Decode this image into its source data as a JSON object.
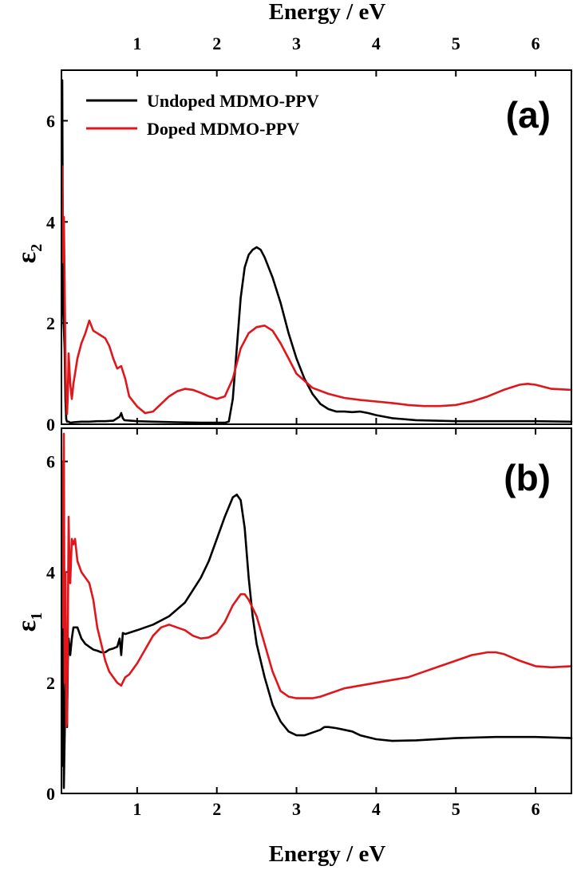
{
  "chart_data": {
    "type": "line",
    "x_label_top": "Energy / eV",
    "x_label_bottom": "Energy / eV",
    "xlim": [
      0.05,
      6.45
    ],
    "x_ticks": [
      1,
      2,
      3,
      4,
      5,
      6
    ],
    "colors": {
      "undoped": "#000000",
      "doped": "#e0161b"
    },
    "legend": {
      "placement": "top-left",
      "entries": [
        "Undoped MDMO-PPV",
        "Doped MDMO-PPV"
      ]
    },
    "panels": [
      {
        "label": "(a)",
        "ylabel_main": "ε",
        "ylabel_sub": "2",
        "ylim": [
          0,
          7
        ],
        "y_ticks": [
          0,
          2,
          4,
          6
        ],
        "series": [
          {
            "name": "Undoped MDMO-PPV",
            "x": [
              0.06,
              0.07,
              0.08,
              0.09,
              0.1,
              0.11,
              0.12,
              0.14,
              0.16,
              0.2,
              0.3,
              0.4,
              0.5,
              0.6,
              0.7,
              0.78,
              0.8,
              0.82,
              0.84,
              1.0,
              1.2,
              1.5,
              1.8,
              2.0,
              2.1,
              2.15,
              2.2,
              2.25,
              2.3,
              2.35,
              2.4,
              2.45,
              2.5,
              2.55,
              2.6,
              2.7,
              2.8,
              2.9,
              3.0,
              3.1,
              3.2,
              3.3,
              3.4,
              3.5,
              3.6,
              3.7,
              3.8,
              3.9,
              4.0,
              4.2,
              4.5,
              5.0,
              5.5,
              6.0,
              6.45
            ],
            "y": [
              6.8,
              2.3,
              1.9,
              1.5,
              0.5,
              0.1,
              0.05,
              0.05,
              0.03,
              0.04,
              0.05,
              0.05,
              0.06,
              0.06,
              0.07,
              0.15,
              0.22,
              0.12,
              0.08,
              0.06,
              0.05,
              0.04,
              0.03,
              0.03,
              0.03,
              0.05,
              0.5,
              1.5,
              2.5,
              3.1,
              3.35,
              3.45,
              3.5,
              3.45,
              3.3,
              2.9,
              2.4,
              1.8,
              1.3,
              0.9,
              0.6,
              0.4,
              0.3,
              0.25,
              0.25,
              0.24,
              0.25,
              0.22,
              0.18,
              0.12,
              0.08,
              0.06,
              0.06,
              0.06,
              0.05
            ]
          },
          {
            "name": "Doped MDMO-PPV",
            "x": [
              0.06,
              0.07,
              0.08,
              0.09,
              0.1,
              0.11,
              0.12,
              0.13,
              0.14,
              0.16,
              0.18,
              0.2,
              0.25,
              0.3,
              0.35,
              0.4,
              0.45,
              0.5,
              0.55,
              0.6,
              0.65,
              0.7,
              0.75,
              0.8,
              0.85,
              0.9,
              1.0,
              1.1,
              1.2,
              1.3,
              1.4,
              1.5,
              1.6,
              1.7,
              1.8,
              1.9,
              2.0,
              2.1,
              2.2,
              2.3,
              2.4,
              2.5,
              2.6,
              2.7,
              2.8,
              2.9,
              3.0,
              3.2,
              3.4,
              3.6,
              3.8,
              4.0,
              4.2,
              4.4,
              4.6,
              4.8,
              5.0,
              5.2,
              5.4,
              5.6,
              5.8,
              5.9,
              6.0,
              6.2,
              6.45
            ],
            "y": [
              5.1,
              3.2,
              4.1,
              2.8,
              1.2,
              0.5,
              0.2,
              0.6,
              1.4,
              0.8,
              0.5,
              0.8,
              1.3,
              1.6,
              1.8,
              2.05,
              1.85,
              1.8,
              1.75,
              1.7,
              1.55,
              1.3,
              1.1,
              1.15,
              0.9,
              0.55,
              0.35,
              0.22,
              0.25,
              0.4,
              0.55,
              0.65,
              0.7,
              0.68,
              0.62,
              0.55,
              0.5,
              0.55,
              0.9,
              1.5,
              1.8,
              1.92,
              1.95,
              1.85,
              1.6,
              1.3,
              1.0,
              0.72,
              0.6,
              0.52,
              0.48,
              0.45,
              0.42,
              0.38,
              0.36,
              0.36,
              0.38,
              0.45,
              0.55,
              0.68,
              0.78,
              0.8,
              0.78,
              0.7,
              0.68
            ]
          }
        ]
      },
      {
        "label": "(b)",
        "ylabel_main": "ε",
        "ylabel_sub": "1",
        "ylim": [
          0,
          6.6
        ],
        "y_ticks": [
          0,
          2,
          4,
          6
        ],
        "series": [
          {
            "name": "Undoped MDMO-PPV",
            "x": [
              0.06,
              0.07,
              0.08,
              0.09,
              0.1,
              0.11,
              0.12,
              0.13,
              0.14,
              0.16,
              0.18,
              0.2,
              0.25,
              0.3,
              0.35,
              0.4,
              0.45,
              0.5,
              0.55,
              0.6,
              0.65,
              0.7,
              0.75,
              0.78,
              0.8,
              0.82,
              0.85,
              1.0,
              1.2,
              1.4,
              1.6,
              1.8,
              1.9,
              2.0,
              2.1,
              2.2,
              2.25,
              2.3,
              2.35,
              2.4,
              2.45,
              2.5,
              2.6,
              2.7,
              2.8,
              2.9,
              3.0,
              3.1,
              3.2,
              3.3,
              3.35,
              3.4,
              3.5,
              3.6,
              3.7,
              3.8,
              4.0,
              4.2,
              4.5,
              5.0,
              5.5,
              6.0,
              6.45
            ],
            "y": [
              0.5,
              3.2,
              0.1,
              1.0,
              1.8,
              2.5,
              1.2,
              2.4,
              2.8,
              2.5,
              2.8,
              3.0,
              3.0,
              2.8,
              2.7,
              2.65,
              2.6,
              2.58,
              2.55,
              2.55,
              2.6,
              2.62,
              2.65,
              2.8,
              2.5,
              2.9,
              2.88,
              2.95,
              3.05,
              3.2,
              3.45,
              3.9,
              4.2,
              4.6,
              5.0,
              5.35,
              5.4,
              5.3,
              4.8,
              3.9,
              3.2,
              2.7,
              2.1,
              1.6,
              1.3,
              1.12,
              1.05,
              1.05,
              1.1,
              1.15,
              1.2,
              1.2,
              1.18,
              1.15,
              1.12,
              1.05,
              0.98,
              0.95,
              0.96,
              1.0,
              1.02,
              1.02,
              1.0
            ]
          },
          {
            "name": "Doped MDMO-PPV",
            "x": [
              0.06,
              0.07,
              0.08,
              0.09,
              0.1,
              0.11,
              0.12,
              0.13,
              0.14,
              0.15,
              0.16,
              0.18,
              0.2,
              0.22,
              0.25,
              0.3,
              0.35,
              0.4,
              0.45,
              0.5,
              0.55,
              0.6,
              0.65,
              0.7,
              0.75,
              0.8,
              0.85,
              0.9,
              1.0,
              1.1,
              1.2,
              1.3,
              1.4,
              1.5,
              1.6,
              1.7,
              1.8,
              1.9,
              2.0,
              2.1,
              2.2,
              2.3,
              2.35,
              2.4,
              2.5,
              2.6,
              2.7,
              2.8,
              2.9,
              3.0,
              3.1,
              3.2,
              3.3,
              3.4,
              3.6,
              3.8,
              4.0,
              4.2,
              4.4,
              4.6,
              4.8,
              5.0,
              5.2,
              5.4,
              5.5,
              5.6,
              5.8,
              6.0,
              6.2,
              6.45
            ],
            "y": [
              6.0,
              3.0,
              6.5,
              2.0,
              4.0,
              1.2,
              1.3,
              3.0,
              5.0,
              4.2,
              3.8,
              4.6,
              4.5,
              4.6,
              4.2,
              4.0,
              3.9,
              3.8,
              3.5,
              3.0,
              2.7,
              2.4,
              2.2,
              2.1,
              2.0,
              1.95,
              2.1,
              2.15,
              2.35,
              2.6,
              2.85,
              3.0,
              3.05,
              3.0,
              2.95,
              2.85,
              2.8,
              2.82,
              2.9,
              3.1,
              3.4,
              3.6,
              3.6,
              3.5,
              3.2,
              2.7,
              2.2,
              1.85,
              1.75,
              1.72,
              1.72,
              1.72,
              1.75,
              1.8,
              1.9,
              1.95,
              2.0,
              2.05,
              2.1,
              2.2,
              2.3,
              2.4,
              2.5,
              2.55,
              2.55,
              2.52,
              2.4,
              2.3,
              2.28,
              2.3
            ]
          }
        ]
      }
    ]
  }
}
